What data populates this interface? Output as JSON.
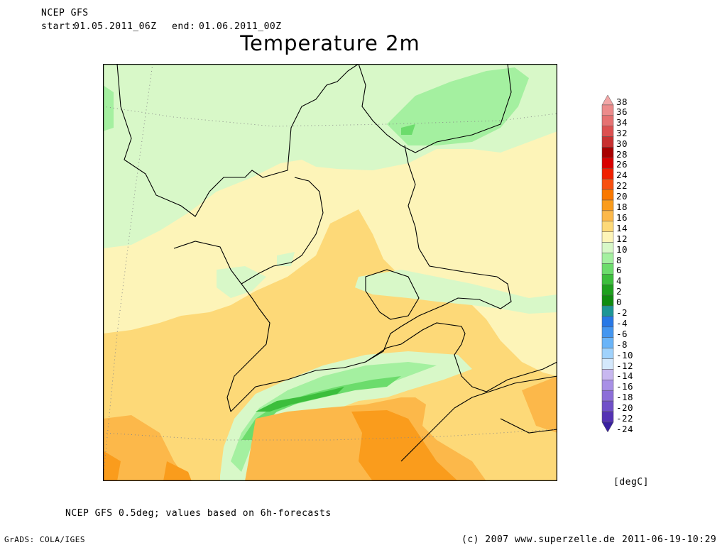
{
  "header": {
    "model": "NCEP GFS",
    "start_label": "start:",
    "start": "01.05.2011_06Z",
    "end_label": "end:",
    "end": "01.06.2011_00Z"
  },
  "title": "Temperature 2m",
  "legend": {
    "unit": "[degC]",
    "levels": [
      {
        "value": "38",
        "color": "#f2a6a6"
      },
      {
        "value": "36",
        "color": "#ec8c8c"
      },
      {
        "value": "34",
        "color": "#e67272"
      },
      {
        "value": "32",
        "color": "#dc5050"
      },
      {
        "value": "30",
        "color": "#c83030"
      },
      {
        "value": "28",
        "color": "#a80000"
      },
      {
        "value": "26",
        "color": "#d80000"
      },
      {
        "value": "24",
        "color": "#f02000"
      },
      {
        "value": "22",
        "color": "#f85010"
      },
      {
        "value": "20",
        "color": "#fa7800"
      },
      {
        "value": "18",
        "color": "#fa9c1c"
      },
      {
        "value": "16",
        "color": "#fcb84a"
      },
      {
        "value": "14",
        "color": "#fdd978"
      },
      {
        "value": "12",
        "color": "#fdf4b8"
      },
      {
        "value": "10",
        "color": "#d8f8c8"
      },
      {
        "value": "8",
        "color": "#a4f0a0"
      },
      {
        "value": "6",
        "color": "#6cdc6c"
      },
      {
        "value": "4",
        "color": "#3cbe3c"
      },
      {
        "value": "2",
        "color": "#1ea01e"
      },
      {
        "value": "0",
        "color": "#108c10"
      },
      {
        "value": "-2",
        "color": "#1e9696"
      },
      {
        "value": "-4",
        "color": "#2878e6"
      },
      {
        "value": "-6",
        "color": "#4496f0"
      },
      {
        "value": "-8",
        "color": "#6ab4f8"
      },
      {
        "value": "-10",
        "color": "#a0d2fc"
      },
      {
        "value": "-12",
        "color": "#d4e8fc"
      },
      {
        "value": "-14",
        "color": "#c8b8f0"
      },
      {
        "value": "-16",
        "color": "#a890e6"
      },
      {
        "value": "-18",
        "color": "#8c6ed8"
      },
      {
        "value": "-20",
        "color": "#7050c8"
      },
      {
        "value": "-22",
        "color": "#5432b4"
      },
      {
        "value": "-24",
        "color": "#3820a0"
      }
    ]
  },
  "footer": {
    "note": "NCEP GFS 0.5deg; values based on 6h-forecasts",
    "grads": "GrADS: COLA/IGES",
    "copyright": "(c) 2007 www.superzelle.de",
    "timestamp": "2011-06-19-10:29"
  }
}
